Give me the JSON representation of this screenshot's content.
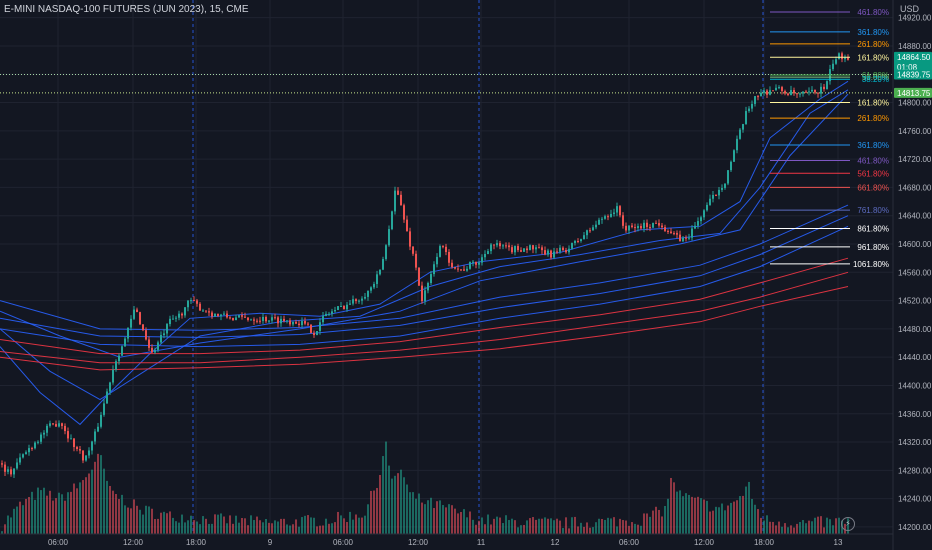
{
  "title": "E-MINI NASDAQ-100 FUTURES (JUN 2023), 15, CME",
  "currency": "USD",
  "chart_data": {
    "type": "candlestick",
    "symbol": "E-MINI NASDAQ-100 FUTURES (JUN 2023)",
    "interval": "15",
    "exchange": "CME",
    "ylim": [
      14190,
      14945
    ],
    "y_ticks": [
      14200,
      14240,
      14280,
      14320,
      14360,
      14400,
      14440,
      14480,
      14520,
      14560,
      14600,
      14640,
      14680,
      14720,
      14760,
      14800,
      14840,
      14880,
      14920
    ],
    "x_ticks": [
      {
        "label": "06:00",
        "pos": 58
      },
      {
        "label": "12:00",
        "pos": 133
      },
      {
        "label": "18:00",
        "pos": 196
      },
      {
        "label": "9",
        "pos": 270
      },
      {
        "label": "06:00",
        "pos": 343
      },
      {
        "label": "12:00",
        "pos": 418
      },
      {
        "label": "11",
        "pos": 481
      },
      {
        "label": "12",
        "pos": 555
      },
      {
        "label": "06:00",
        "pos": 629
      },
      {
        "label": "12:00",
        "pos": 704
      },
      {
        "label": "18:00",
        "pos": 764
      },
      {
        "label": "13",
        "pos": 838
      }
    ],
    "session_breaks": [
      193,
      479,
      763
    ],
    "price_anchors": [
      [
        0,
        14290
      ],
      [
        10,
        14275
      ],
      [
        22,
        14300
      ],
      [
        35,
        14320
      ],
      [
        48,
        14340
      ],
      [
        60,
        14350
      ],
      [
        72,
        14320
      ],
      [
        85,
        14295
      ],
      [
        95,
        14330
      ],
      [
        105,
        14380
      ],
      [
        115,
        14435
      ],
      [
        125,
        14465
      ],
      [
        135,
        14510
      ],
      [
        145,
        14470
      ],
      [
        152,
        14445
      ],
      [
        160,
        14465
      ],
      [
        170,
        14490
      ],
      [
        180,
        14500
      ],
      [
        190,
        14520
      ],
      [
        200,
        14510
      ],
      [
        215,
        14500
      ],
      [
        235,
        14495
      ],
      [
        260,
        14495
      ],
      [
        285,
        14492
      ],
      [
        300,
        14490
      ],
      [
        315,
        14475
      ],
      [
        325,
        14500
      ],
      [
        340,
        14510
      ],
      [
        355,
        14520
      ],
      [
        370,
        14535
      ],
      [
        380,
        14560
      ],
      [
        388,
        14610
      ],
      [
        395,
        14680
      ],
      [
        400,
        14660
      ],
      [
        408,
        14610
      ],
      [
        415,
        14575
      ],
      [
        422,
        14520
      ],
      [
        430,
        14550
      ],
      [
        440,
        14600
      ],
      [
        450,
        14575
      ],
      [
        460,
        14562
      ],
      [
        470,
        14570
      ],
      [
        480,
        14575
      ],
      [
        490,
        14600
      ],
      [
        510,
        14592
      ],
      [
        530,
        14595
      ],
      [
        550,
        14585
      ],
      [
        570,
        14595
      ],
      [
        590,
        14620
      ],
      [
        605,
        14640
      ],
      [
        618,
        14650
      ],
      [
        625,
        14620
      ],
      [
        640,
        14625
      ],
      [
        660,
        14630
      ],
      [
        675,
        14610
      ],
      [
        685,
        14605
      ],
      [
        695,
        14625
      ],
      [
        705,
        14650
      ],
      [
        715,
        14670
      ],
      [
        725,
        14690
      ],
      [
        735,
        14735
      ],
      [
        745,
        14780
      ],
      [
        755,
        14810
      ],
      [
        765,
        14815
      ],
      [
        775,
        14820
      ],
      [
        785,
        14815
      ],
      [
        800,
        14810
      ],
      [
        815,
        14815
      ],
      [
        826,
        14822
      ],
      [
        833,
        14858
      ],
      [
        840,
        14866
      ],
      [
        848,
        14865
      ]
    ],
    "volume_anchors": [
      [
        0,
        14200
      ],
      [
        20,
        14230
      ],
      [
        40,
        14250
      ],
      [
        60,
        14240
      ],
      [
        80,
        14260
      ],
      [
        95,
        14290
      ],
      [
        100,
        14300
      ],
      [
        110,
        14250
      ],
      [
        140,
        14225
      ],
      [
        170,
        14215
      ],
      [
        190,
        14215
      ],
      [
        200,
        14212
      ],
      [
        270,
        14206
      ],
      [
        330,
        14210
      ],
      [
        365,
        14220
      ],
      [
        380,
        14275
      ],
      [
        385,
        14325
      ],
      [
        392,
        14260
      ],
      [
        400,
        14285
      ],
      [
        410,
        14245
      ],
      [
        425,
        14235
      ],
      [
        440,
        14230
      ],
      [
        460,
        14220
      ],
      [
        480,
        14210
      ],
      [
        560,
        14205
      ],
      [
        640,
        14210
      ],
      [
        665,
        14225
      ],
      [
        672,
        14270
      ],
      [
        680,
        14245
      ],
      [
        700,
        14235
      ],
      [
        720,
        14225
      ],
      [
        740,
        14240
      ],
      [
        748,
        14260
      ],
      [
        755,
        14230
      ],
      [
        765,
        14210
      ],
      [
        800,
        14205
      ],
      [
        848,
        14208
      ]
    ],
    "moving_averages": [
      {
        "color": "#2962ff",
        "points": [
          [
            0,
            14455
          ],
          [
            40,
            14390
          ],
          [
            80,
            14345
          ],
          [
            110,
            14390
          ],
          [
            150,
            14445
          ],
          [
            190,
            14495
          ],
          [
            260,
            14502
          ],
          [
            320,
            14498
          ],
          [
            380,
            14515
          ],
          [
            430,
            14560
          ],
          [
            480,
            14575
          ],
          [
            560,
            14588
          ],
          [
            640,
            14620
          ],
          [
            700,
            14625
          ],
          [
            740,
            14660
          ],
          [
            770,
            14750
          ],
          [
            820,
            14805
          ],
          [
            848,
            14830
          ]
        ]
      },
      {
        "color": "#2962ff",
        "points": [
          [
            0,
            14480
          ],
          [
            50,
            14420
          ],
          [
            100,
            14380
          ],
          [
            150,
            14425
          ],
          [
            200,
            14470
          ],
          [
            280,
            14490
          ],
          [
            360,
            14498
          ],
          [
            430,
            14540
          ],
          [
            500,
            14568
          ],
          [
            580,
            14585
          ],
          [
            660,
            14605
          ],
          [
            720,
            14615
          ],
          [
            760,
            14680
          ],
          [
            810,
            14785
          ],
          [
            848,
            14818
          ]
        ]
      },
      {
        "color": "#2962ff",
        "points": [
          [
            0,
            14505
          ],
          [
            60,
            14470
          ],
          [
            120,
            14440
          ],
          [
            200,
            14460
          ],
          [
            300,
            14480
          ],
          [
            400,
            14505
          ],
          [
            480,
            14548
          ],
          [
            580,
            14575
          ],
          [
            680,
            14600
          ],
          [
            740,
            14620
          ],
          [
            790,
            14725
          ],
          [
            848,
            14812
          ]
        ]
      },
      {
        "color": "#2962ff",
        "points": [
          [
            0,
            14520
          ],
          [
            100,
            14480
          ],
          [
            200,
            14478
          ],
          [
            300,
            14482
          ],
          [
            400,
            14495
          ],
          [
            500,
            14525
          ],
          [
            600,
            14545
          ],
          [
            700,
            14570
          ],
          [
            760,
            14600
          ],
          [
            848,
            14655
          ]
        ]
      },
      {
        "color": "#2962ff",
        "points": [
          [
            0,
            14495
          ],
          [
            100,
            14470
          ],
          [
            200,
            14468
          ],
          [
            300,
            14472
          ],
          [
            400,
            14485
          ],
          [
            500,
            14510
          ],
          [
            600,
            14530
          ],
          [
            700,
            14555
          ],
          [
            760,
            14585
          ],
          [
            848,
            14640
          ]
        ]
      },
      {
        "color": "#2962ff",
        "points": [
          [
            0,
            14480
          ],
          [
            100,
            14458
          ],
          [
            200,
            14455
          ],
          [
            300,
            14458
          ],
          [
            400,
            14470
          ],
          [
            500,
            14495
          ],
          [
            600,
            14515
          ],
          [
            700,
            14540
          ],
          [
            760,
            14568
          ],
          [
            848,
            14625
          ]
        ]
      },
      {
        "color": "#f23645",
        "points": [
          [
            0,
            14465
          ],
          [
            100,
            14445
          ],
          [
            200,
            14445
          ],
          [
            300,
            14450
          ],
          [
            400,
            14462
          ],
          [
            500,
            14482
          ],
          [
            600,
            14500
          ],
          [
            700,
            14522
          ],
          [
            760,
            14545
          ],
          [
            848,
            14580
          ]
        ]
      },
      {
        "color": "#f23645",
        "points": [
          [
            0,
            14448
          ],
          [
            100,
            14432
          ],
          [
            200,
            14432
          ],
          [
            300,
            14440
          ],
          [
            400,
            14450
          ],
          [
            500,
            14465
          ],
          [
            600,
            14485
          ],
          [
            700,
            14505
          ],
          [
            760,
            14525
          ],
          [
            848,
            14560
          ]
        ]
      },
      {
        "color": "#f23645",
        "points": [
          [
            0,
            14440
          ],
          [
            100,
            14422
          ],
          [
            200,
            14425
          ],
          [
            300,
            14430
          ],
          [
            400,
            14440
          ],
          [
            500,
            14452
          ],
          [
            600,
            14470
          ],
          [
            700,
            14490
          ],
          [
            760,
            14512
          ],
          [
            848,
            14540
          ]
        ]
      }
    ],
    "fib_levels": [
      {
        "label": "461.80%",
        "price": 14928,
        "color": "#7e57c2"
      },
      {
        "label": "361.80%",
        "price": 14900,
        "color": "#2196f3"
      },
      {
        "label": "261.80%",
        "price": 14883,
        "color": "#ff9800"
      },
      {
        "label": "161.80%",
        "price": 14864,
        "color": "#fff59d"
      },
      {
        "label": "61.80%",
        "price": 14839,
        "color": "#4caf50"
      },
      {
        "label": "50.00%",
        "price": 14836,
        "color": "#81c784"
      },
      {
        "label": "38.20%",
        "price": 14833,
        "color": "#00bcd4"
      },
      {
        "label": "161.80%",
        "price": 14800,
        "color": "#fff59d"
      },
      {
        "label": "261.80%",
        "price": 14778,
        "color": "#ff9800"
      },
      {
        "label": "361.80%",
        "price": 14740,
        "color": "#2196f3"
      },
      {
        "label": "461.80%",
        "price": 14718,
        "color": "#7e57c2"
      },
      {
        "label": "561.80%",
        "price": 14700,
        "color": "#f23645"
      },
      {
        "label": "661.80%",
        "price": 14680,
        "color": "#ef5350"
      },
      {
        "label": "761.80%",
        "price": 14648,
        "color": "#5c6bc0"
      },
      {
        "label": "861.80%",
        "price": 14622,
        "color": "#ffffff"
      },
      {
        "label": "961.80%",
        "price": 14596,
        "color": "#ffffff"
      },
      {
        "label": "1061.80%",
        "price": 14572,
        "color": "#ffffff"
      }
    ],
    "price_labels": [
      {
        "text": "14864.50",
        "sub": "01:08",
        "price": 14864.5,
        "bg": "#089981"
      },
      {
        "text": "14839.75",
        "price": 14839.75,
        "bg": "#089981"
      },
      {
        "text": "14813.75",
        "price": 14813.75,
        "bg": "#4caf50"
      }
    ],
    "dotted_lines": [
      {
        "price": 14839.75,
        "color": "#a5d6a7"
      },
      {
        "price": 14813.75,
        "color": "#c6e48b"
      }
    ],
    "colors": {
      "up": "#26a69a",
      "down": "#ef5350",
      "vol_up": "#22ab94",
      "vol_down": "#f7525f",
      "grid": "#1f2330",
      "text": "#b2b5be",
      "background": "#131722"
    }
  }
}
